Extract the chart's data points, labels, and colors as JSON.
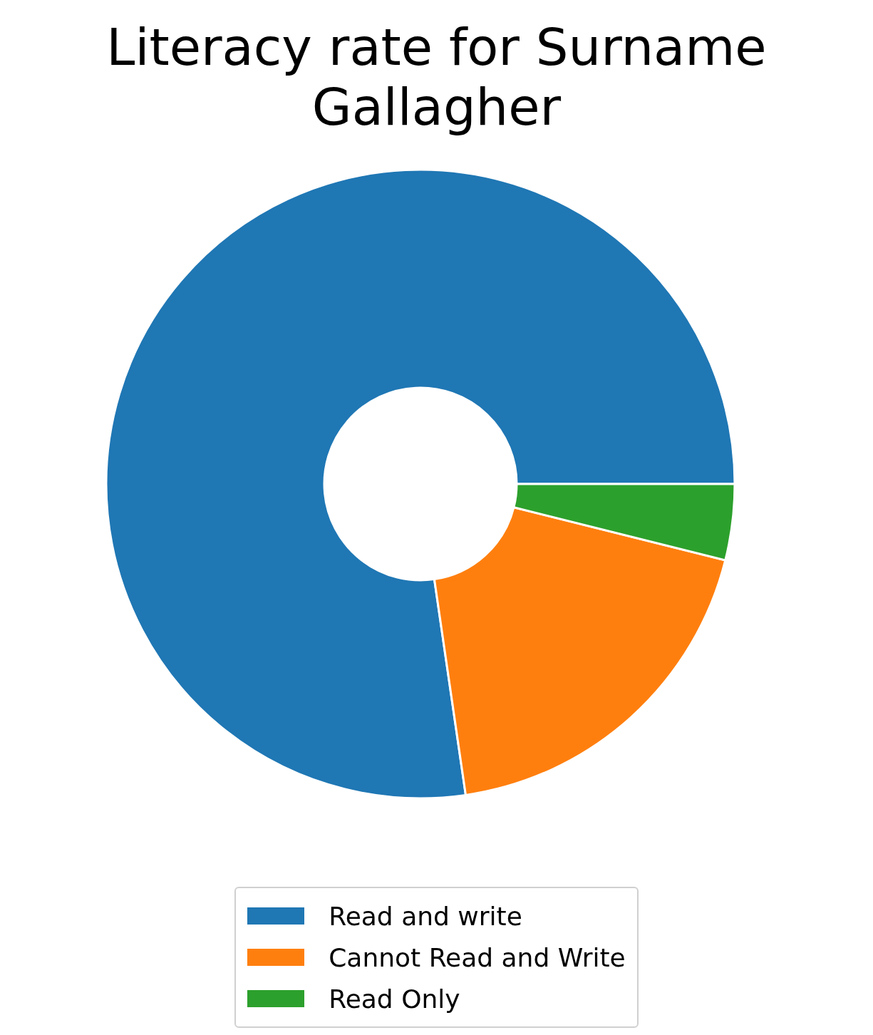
{
  "chart_data": {
    "type": "donut",
    "title": "Literacy rate for Surname Gallagher",
    "categories": [
      "Read and write",
      "Cannot Read and Write",
      "Read Only"
    ],
    "values": [
      77.3,
      18.8,
      3.9
    ],
    "colors": [
      "#1f77b4",
      "#ff7f0e",
      "#2ca02c"
    ],
    "legend": "bottom"
  }
}
